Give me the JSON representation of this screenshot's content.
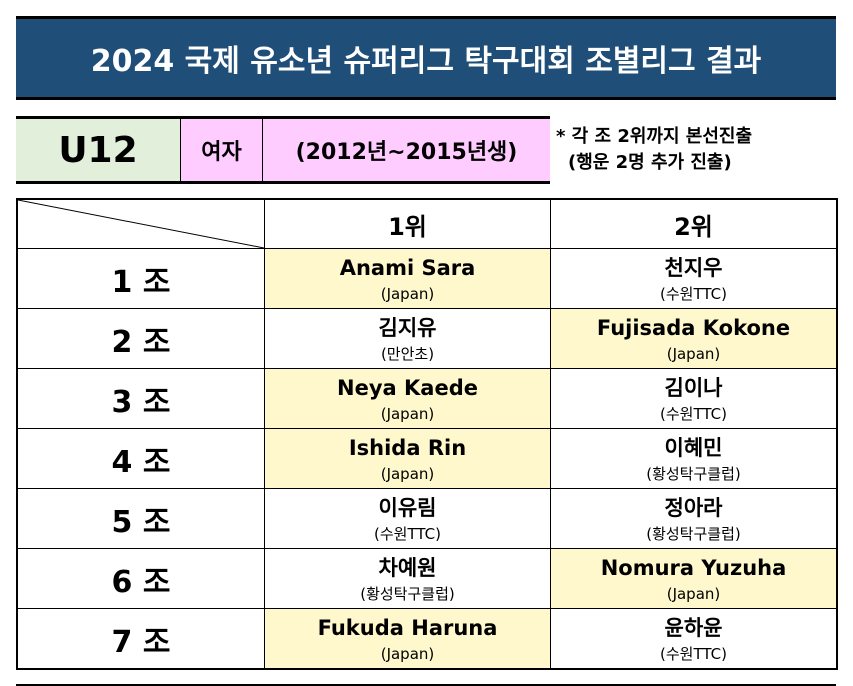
{
  "title": "2024 국제 유소년 슈퍼리그 탁구대회 조별리그 결과",
  "info": {
    "category": "U12",
    "gender": "여자",
    "birth_range": "(2012년~2015년생)",
    "note_line1": "* 각 조 2위까지 본선진출",
    "note_line2": "(행운 2명 추가 진출)"
  },
  "table": {
    "headers": [
      "1위",
      "2위"
    ],
    "rows": [
      {
        "group": "1 조",
        "first": {
          "name": "Anami Sara",
          "club": "(Japan)"
        },
        "second": {
          "name": "천지우",
          "club": "(수원TTC)"
        }
      },
      {
        "group": "2 조",
        "first": {
          "name": "김지유",
          "club": "(만안초)"
        },
        "second": {
          "name": "Fujisada Kokone",
          "club": "(Japan)"
        }
      },
      {
        "group": "3 조",
        "first": {
          "name": "Neya Kaede",
          "club": "(Japan)"
        },
        "second": {
          "name": "김이나",
          "club": "(수원TTC)"
        }
      },
      {
        "group": "4 조",
        "first": {
          "name": "Ishida Rin",
          "club": "(Japan)"
        },
        "second": {
          "name": "이혜민",
          "club": "(황성탁구클럽)"
        }
      },
      {
        "group": "5 조",
        "first": {
          "name": "이유림",
          "club": "(수원TTC)"
        },
        "second": {
          "name": "정아라",
          "club": "(황성탁구클럽)"
        }
      },
      {
        "group": "6 조",
        "first": {
          "name": "차예원",
          "club": "(황성탁구클럽)"
        },
        "second": {
          "name": "Nomura Yuzuha",
          "club": "(Japan)"
        }
      },
      {
        "group": "7 조",
        "first": {
          "name": "Fukuda Haruna",
          "club": "(Japan)"
        },
        "second": {
          "name": "윤하윤",
          "club": "(수원TTC)"
        }
      }
    ]
  },
  "colors": {
    "title_bg": "#1f4e79",
    "category_bg": "#e2efda",
    "gender_bg": "#ffccff",
    "japan_highlight": "#fff8cc"
  }
}
